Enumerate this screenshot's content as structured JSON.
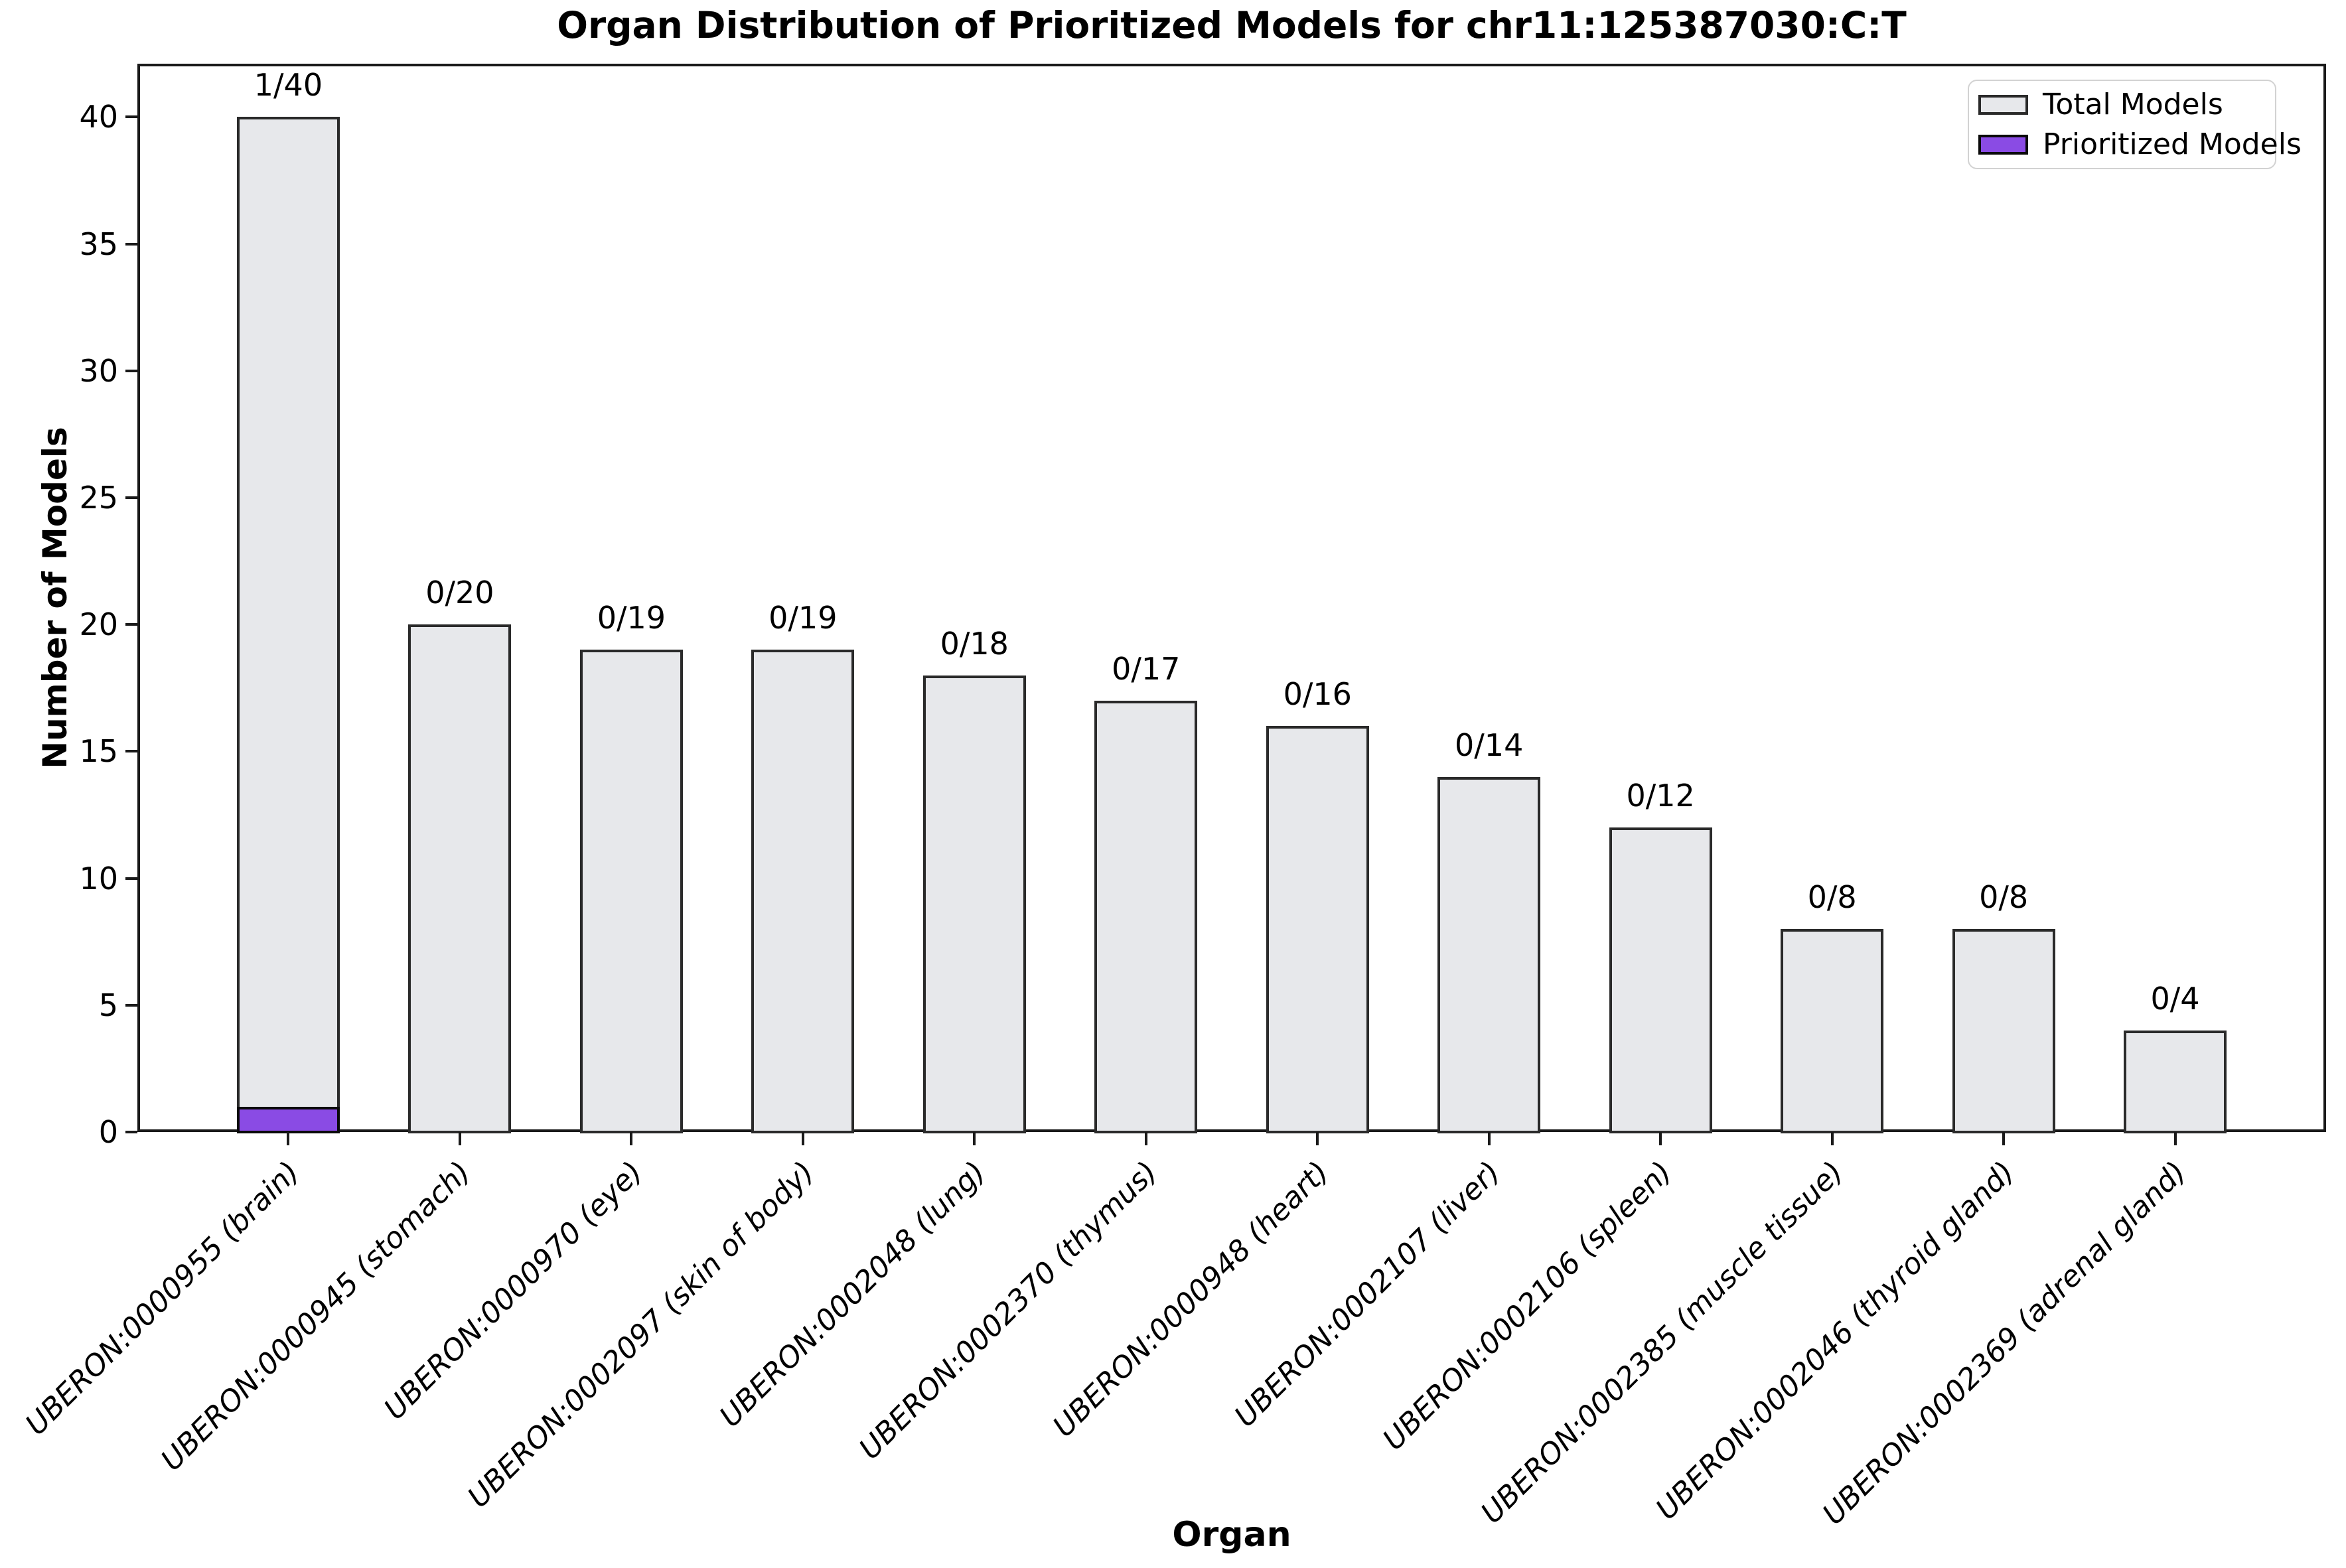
{
  "chart_data": {
    "type": "bar",
    "title": "Organ Distribution of Prioritized Models for chr11:125387030:C:T",
    "xlabel": "Organ",
    "ylabel": "Number of Models",
    "ylim": [
      0,
      42.1
    ],
    "yticks": [
      0,
      5,
      10,
      15,
      20,
      25,
      30,
      35,
      40
    ],
    "grid": "horizontal",
    "legend_position": "upper right",
    "categories": [
      "UBERON:0000955 (brain)",
      "UBERON:0000945 (stomach)",
      "UBERON:0000970 (eye)",
      "UBERON:0002097 (skin of body)",
      "UBERON:0002048 (lung)",
      "UBERON:0002370 (thymus)",
      "UBERON:0000948 (heart)",
      "UBERON:0002107 (liver)",
      "UBERON:0002106 (spleen)",
      "UBERON:0002385 (muscle tissue)",
      "UBERON:0002046 (thyroid gland)",
      "UBERON:0002369 (adrenal gland)"
    ],
    "series": [
      {
        "name": "Total Models",
        "values": [
          40,
          20,
          19,
          19,
          18,
          17,
          16,
          14,
          12,
          8,
          8,
          4
        ],
        "fill_color": "#e7e8eb",
        "edge_color": "#2a2a2a"
      },
      {
        "name": "Prioritized Models",
        "values": [
          1,
          0,
          0,
          0,
          0,
          0,
          0,
          0,
          0,
          0,
          0,
          0
        ],
        "fill_color": "#8a4be4",
        "edge_color": "#0a0a0a"
      }
    ],
    "bar_labels": [
      "1/40",
      "0/20",
      "0/19",
      "0/19",
      "0/18",
      "0/17",
      "0/16",
      "0/14",
      "0/12",
      "0/8",
      "0/8",
      "0/4"
    ]
  },
  "colors": {
    "total_fill": "#e7e8eb",
    "total_edge": "#2a2a2a",
    "prioritized_fill": "#8a4be4",
    "prioritized_edge": "#0a0a0a",
    "gridline": "#e7e7e7",
    "spine": "#1a1a1a"
  }
}
